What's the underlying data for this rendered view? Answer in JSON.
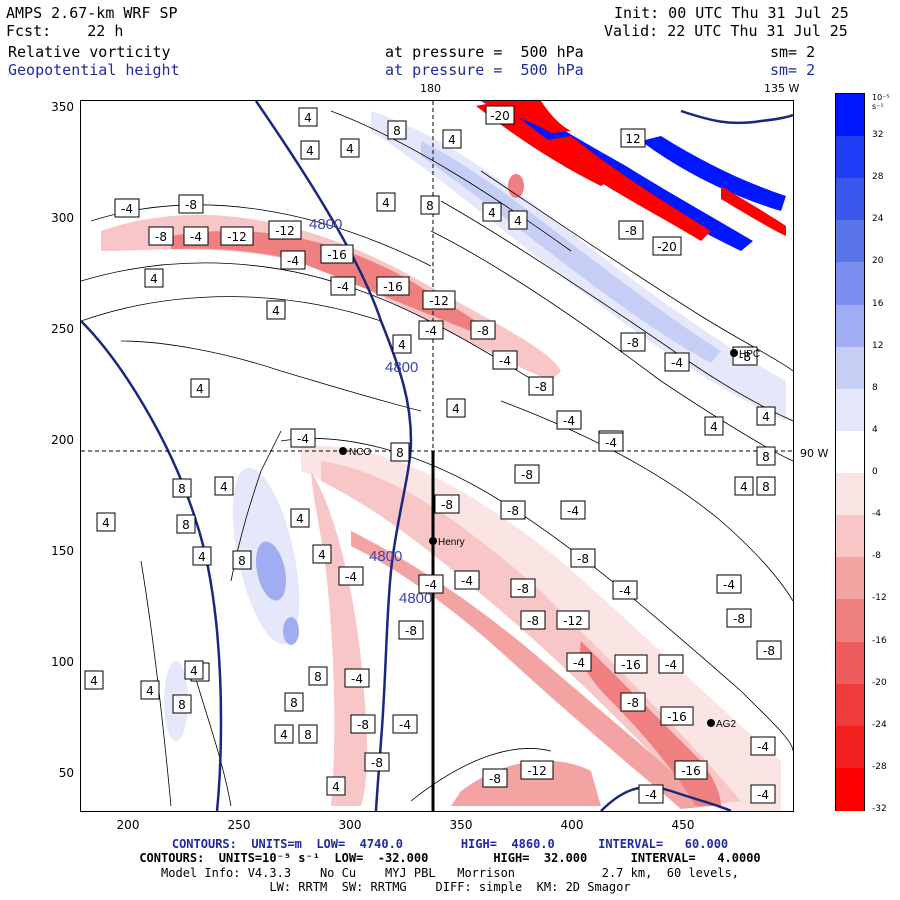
{
  "header": {
    "model_title": "AMPS 2.67-km WRF SP",
    "init": "Init: 00 UTC Thu 31 Jul 25",
    "forecast": "Fcst:    22 h",
    "valid": "Valid: 22 UTC Thu 31 Jul 25",
    "field1_name": "Relative vorticity",
    "field1_level": "at pressure =  500 hPa",
    "field1_sm": "sm= 2",
    "field2_name": "Geopotential height",
    "field2_level": "at pressure =  500 hPa",
    "field2_sm": "sm= 2",
    "lon_180": "180",
    "lon_135w": "135 W",
    "lon_90w": "90 W"
  },
  "axes": {
    "y_ticks": [
      "350",
      "300",
      "250",
      "200",
      "150",
      "100",
      "50"
    ],
    "x_ticks": [
      "200",
      "250",
      "300",
      "350",
      "400",
      "450"
    ]
  },
  "colorbar": {
    "unit": "10⁻⁵ s⁻¹",
    "labels": [
      "32",
      "28",
      "24",
      "20",
      "16",
      "12",
      "8",
      "4",
      "0",
      "-4",
      "-8",
      "-12",
      "-16",
      "-20",
      "-24",
      "-28",
      "-32"
    ],
    "colors": [
      "#0017ff",
      "#1f3df5",
      "#3a58ee",
      "#5a74ea",
      "#7b8ff0",
      "#a0adf2",
      "#c7cef6",
      "#e5e8fa",
      "#ffffff",
      "#fbe4e4",
      "#f8c6c6",
      "#f4a3a3",
      "#f08080",
      "#ee5d5d",
      "#f03c3c",
      "#f21f1f",
      "#ff0000"
    ]
  },
  "stations": [
    {
      "name": "NCO"
    },
    {
      "name": "Henry"
    },
    {
      "name": "HPC"
    },
    {
      "name": "AG2"
    }
  ],
  "height_labels": [
    "4800",
    "4800",
    "4800",
    "4800"
  ],
  "footer": {
    "line1": "CONTOURS:  UNITS=m  LOW=  4740.0        HIGH=  4860.0      INTERVAL=   60.000",
    "line2": "CONTOURS:  UNITS=10⁻⁵ s⁻¹  LOW=  -32.000         HIGH=  32.000      INTERVAL=   4.0000",
    "line3": "Model Info: V4.3.3    No Cu    MYJ PBL   Morrison            2.7 km,  60 levels,",
    "line4": "LW: RRTM  SW: RRTMG    DIFF: simple  KM: 2D Smagor"
  }
}
